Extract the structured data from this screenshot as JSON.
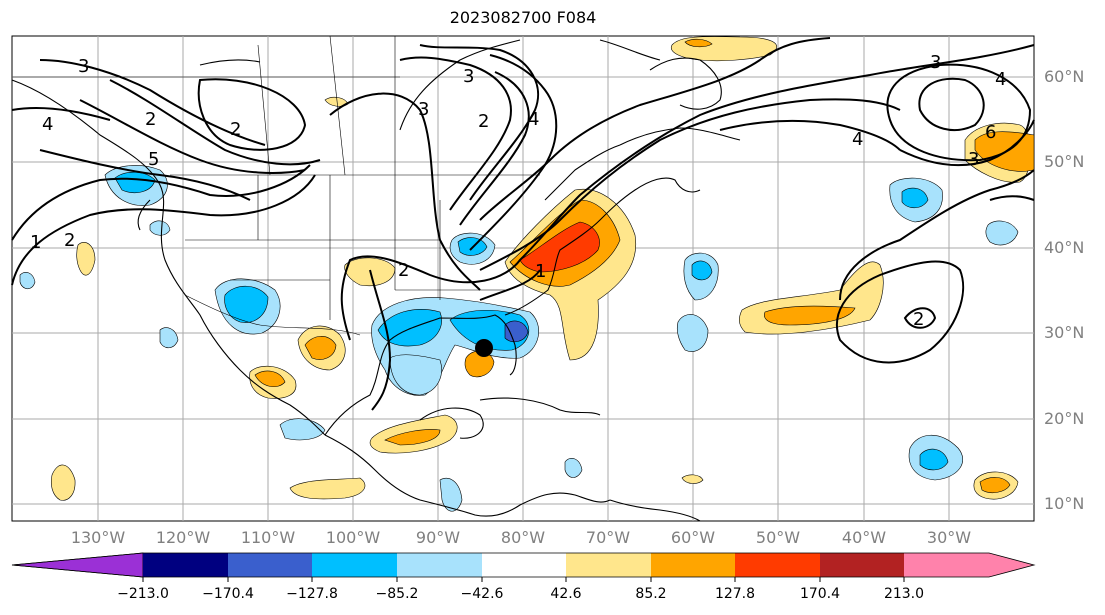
{
  "title": "2023082700 F084",
  "lat_labels": [
    "60°N",
    "50°N",
    "40°N",
    "30°N",
    "20°N",
    "10°N"
  ],
  "lon_labels": [
    "130°W",
    "120°W",
    "110°W",
    "100°W",
    "90°W",
    "80°W",
    "70°W",
    "60°W",
    "50°W",
    "40°W",
    "30°W"
  ],
  "colorbar": {
    "ticks": [
      "−213.0",
      "−170.4",
      "−127.8",
      "−85.2",
      "−42.6",
      "42.6",
      "85.2",
      "127.8",
      "170.4",
      "213.0"
    ],
    "colors": [
      "#9b30d6",
      "#000080",
      "#3a5fcd",
      "#00bfff",
      "#a8e2fc",
      "#ffffff",
      "#ffe68c",
      "#ffa500",
      "#ff3b00",
      "#b22222",
      "#ff82ab"
    ]
  },
  "contour_labels": [
    "3",
    "3",
    "3",
    "2",
    "2",
    "2",
    "1",
    "2",
    "4",
    "5",
    "2",
    "1",
    "4",
    "4",
    "3",
    "4",
    "6",
    "2",
    "3"
  ],
  "marker": {
    "type": "black-dot",
    "lat": 28.3,
    "lon": -84.5
  }
}
